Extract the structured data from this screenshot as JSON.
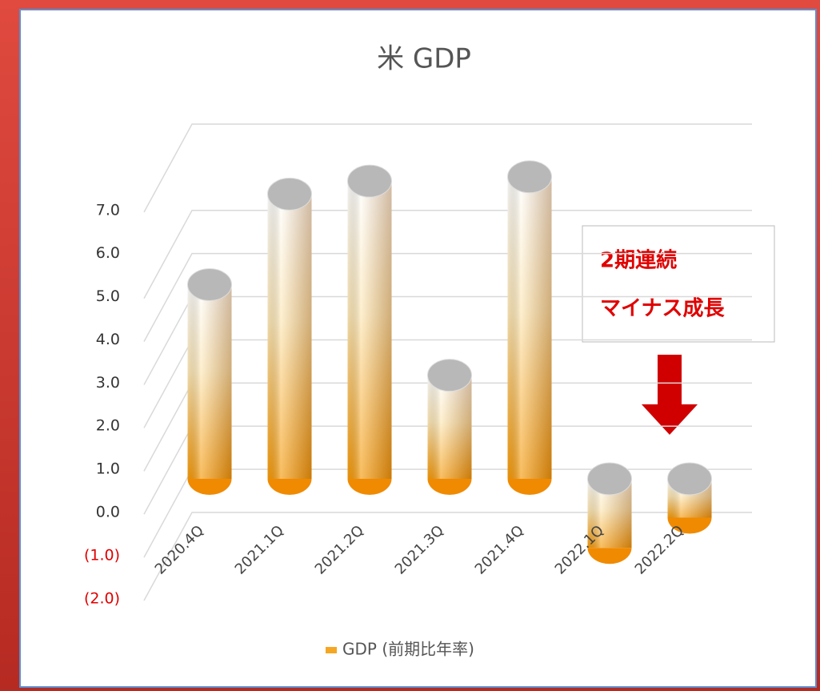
{
  "chart_data": {
    "type": "bar",
    "title": "米 GDP",
    "categories": [
      "2020.4Q",
      "2021.1Q",
      "2021.2Q",
      "2021.3Q",
      "2021.4Q",
      "2022.1Q",
      "2022.2Q"
    ],
    "series": [
      {
        "name": "GDP (前期比年率)",
        "color": "#f5a623",
        "values": [
          4.5,
          6.6,
          6.9,
          2.4,
          7.0,
          -1.6,
          -0.9
        ]
      }
    ],
    "ylim": [
      -2,
      9
    ],
    "yticks": [
      {
        "value": -2,
        "label": "(2.0)"
      },
      {
        "value": -1,
        "label": "(1.0)"
      },
      {
        "value": 0,
        "label": "0.0"
      },
      {
        "value": 1,
        "label": "1.0"
      },
      {
        "value": 2,
        "label": "2.0"
      },
      {
        "value": 3,
        "label": "3.0"
      },
      {
        "value": 4,
        "label": "4.0"
      },
      {
        "value": 5,
        "label": "5.0"
      },
      {
        "value": 6,
        "label": "6.0"
      },
      {
        "value": 7,
        "label": "7.0"
      }
    ],
    "grid": true,
    "legend": "bottom",
    "annotations": [
      "2期連続",
      "マイナス成長"
    ]
  }
}
